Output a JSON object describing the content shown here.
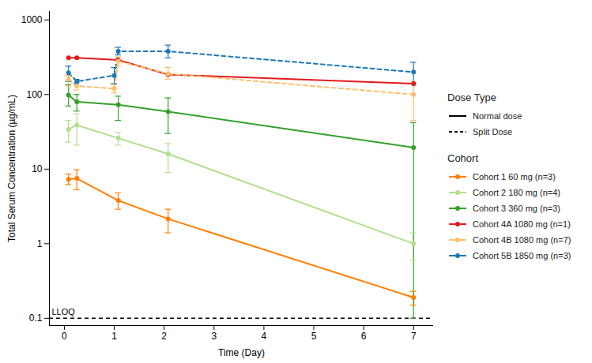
{
  "chart_data": {
    "type": "line",
    "x_label": "Time (Day)",
    "y_label": "Total Serum Concentration (µg/mL)",
    "log": "y",
    "grid": false,
    "legend": "right",
    "marker": "circle",
    "xlim": [
      -0.3,
      7.4
    ],
    "xticks": [
      0,
      1,
      2,
      3,
      4,
      5,
      6,
      7
    ],
    "ylim": [
      0.08,
      1300
    ],
    "yticks": [
      0.1,
      1,
      10,
      100,
      1000
    ],
    "dose_type_legend": {
      "title": "Dose Type",
      "entries": [
        {
          "name": "Normal dose",
          "line_style": "solid"
        },
        {
          "name": "Split Dose",
          "line_style": "dashed"
        }
      ]
    },
    "legend_title": "Cohort",
    "annotations": [
      {
        "text": "LLOQ",
        "y": 0.1,
        "line_style": "dashed"
      }
    ],
    "series": [
      {
        "name": "Cohort 1 60 mg (n=3)",
        "color": "#ff7f00",
        "line_style": "solid",
        "x": [
          0.083,
          0.25,
          1.08,
          2.08,
          7
        ],
        "values": [
          7.3,
          7.5,
          3.8,
          2.15,
          0.19
        ],
        "error_low": [
          6.2,
          5.3,
          2.9,
          1.4,
          0.15
        ],
        "error_high": [
          8.6,
          9.8,
          4.8,
          2.9,
          0.23
        ]
      },
      {
        "name": "Cohort 2 180 mg (n=4)",
        "color": "#b2df8a",
        "line_style": "solid",
        "x": [
          0.083,
          0.25,
          1.08,
          2.08,
          7
        ],
        "values": [
          34,
          39,
          26,
          16,
          1.0
        ],
        "error_low": [
          23,
          21,
          21,
          9,
          0.6
        ],
        "error_high": [
          45,
          55,
          31,
          22,
          1.4
        ]
      },
      {
        "name": "Cohort 3 360 mg (n=3)",
        "color": "#33a02c",
        "line_style": "solid",
        "x": [
          0.083,
          0.25,
          1.08,
          2.08,
          7
        ],
        "values": [
          98,
          80,
          73,
          59,
          19.5
        ],
        "error_low": [
          70,
          60,
          45,
          30,
          0.1
        ],
        "error_high": [
          135,
          100,
          95,
          90,
          42
        ]
      },
      {
        "name": "Cohort 4A 1080 mg (n=1)",
        "color": "#e31a1c",
        "line_style": "solid",
        "x": [
          0.083,
          0.25,
          1.08,
          2.08,
          7
        ],
        "values": [
          310,
          310,
          290,
          185,
          140
        ],
        "error_low": [
          null,
          null,
          null,
          null,
          null
        ],
        "error_high": [
          null,
          null,
          null,
          null,
          null
        ]
      },
      {
        "name": "Cohort 4B 1080 mg (n=7)",
        "color": "#fdbf6f",
        "line_style": "dashed",
        "x": [
          0.083,
          0.25,
          1.0,
          1.08,
          2.08,
          7
        ],
        "values": [
          160,
          130,
          120,
          280,
          190,
          100
        ],
        "error_low": [
          130,
          115,
          105,
          240,
          160,
          45
        ],
        "error_high": [
          180,
          145,
          135,
          320,
          230,
          150
        ]
      },
      {
        "name": "Cohort 5B 1850 mg (n=3)",
        "color": "#1f78b4",
        "line_style": "dashed",
        "x": [
          0.083,
          0.25,
          1.0,
          1.08,
          2.08,
          7
        ],
        "values": [
          195,
          150,
          180,
          380,
          380,
          200
        ],
        "error_low": [
          150,
          140,
          140,
          340,
          310,
          140
        ],
        "error_high": [
          240,
          160,
          230,
          430,
          460,
          270
        ]
      }
    ]
  }
}
